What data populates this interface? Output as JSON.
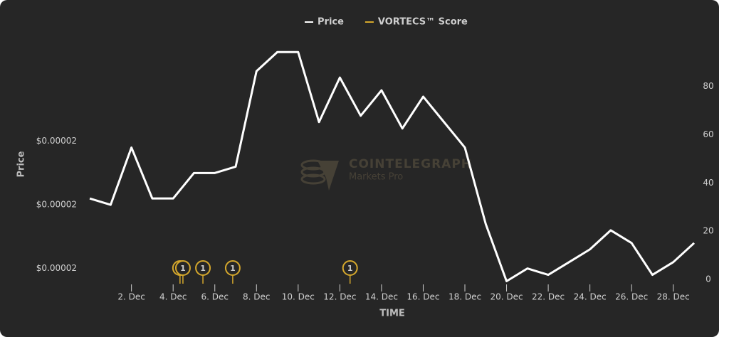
{
  "chart_data": {
    "type": "line",
    "legend": "top",
    "y_label": "Price",
    "x_label": "TIME",
    "watermark": {
      "title": "COINTELEGRAPH",
      "subtitle": "Markets Pro"
    },
    "x": [
      0,
      1,
      2,
      3,
      4,
      5,
      6,
      7,
      8,
      9,
      10,
      11,
      12,
      13,
      14,
      15,
      16,
      17,
      18,
      19,
      20,
      21,
      22,
      23,
      24,
      25,
      26,
      27,
      28,
      29
    ],
    "xlim": [
      -0.55,
      29
    ],
    "xticks": [
      {
        "value": 2,
        "label": "2. Dec"
      },
      {
        "value": 4,
        "label": "4. Dec"
      },
      {
        "value": 6,
        "label": "6. Dec"
      },
      {
        "value": 8,
        "label": "8. Dec"
      },
      {
        "value": 10,
        "label": "10. Dec"
      },
      {
        "value": 12,
        "label": "12. Dec"
      },
      {
        "value": 14,
        "label": "14. Dec"
      },
      {
        "value": 16,
        "label": "16. Dec"
      },
      {
        "value": 18,
        "label": "18. Dec"
      },
      {
        "value": 20,
        "label": "20. Dec"
      },
      {
        "value": 22,
        "label": "22. Dec"
      },
      {
        "value": 24,
        "label": "24. Dec"
      },
      {
        "value": 26,
        "label": "26. Dec"
      },
      {
        "value": 28,
        "label": "28. Dec"
      }
    ],
    "ylim": [
      1.875e-05,
      2.266e-05
    ],
    "yticks": [
      {
        "value": 1.9e-05,
        "label": "$0.00002"
      },
      {
        "value": 2e-05,
        "label": "$0.00002"
      },
      {
        "value": 2.1e-05,
        "label": "$0.00002"
      }
    ],
    "y2lim": [
      -2,
      101
    ],
    "y2ticks": [
      0,
      20,
      40,
      60,
      80
    ],
    "series": [
      {
        "name": "Price",
        "color": "#ffffff",
        "values": [
          2.01e-05,
          2e-05,
          2.09e-05,
          2.01e-05,
          2.01e-05,
          2.05e-05,
          2.05e-05,
          2.06e-05,
          2.21e-05,
          2.24e-05,
          2.24e-05,
          2.13e-05,
          2.2e-05,
          2.14e-05,
          2.18e-05,
          2.12e-05,
          2.17e-05,
          2.13e-05,
          2.09e-05,
          1.97e-05,
          1.88e-05,
          1.9e-05,
          1.89e-05,
          1.91e-05,
          1.93e-05,
          1.96e-05,
          1.94e-05,
          1.89e-05,
          1.91e-05,
          1.94e-05
        ]
      },
      {
        "name": "VORTECS™ Score",
        "color": "#d4a72c",
        "axis": "y2",
        "x": [
          4.33,
          4.47,
          5.43,
          6.86,
          12.49
        ],
        "labels": [
          "1",
          "1",
          "1",
          "1",
          "1"
        ]
      }
    ]
  }
}
